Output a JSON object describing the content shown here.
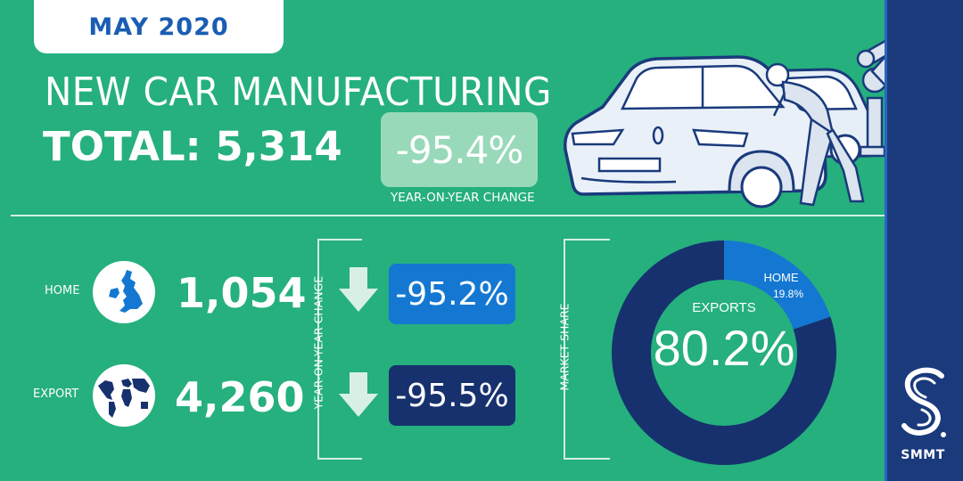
{
  "date": "MAY 2020",
  "headline": "NEW CAR MANUFACTURING",
  "total": "TOTAL: 5,314",
  "total_yoy": "-95.4%",
  "yoy_label": "YEAR-ON-YEAR CHANGE",
  "home": {
    "label": "HOME",
    "value": "1,054",
    "change": "-95.2%"
  },
  "export": {
    "label": "EXPORT",
    "value": "4,260",
    "change": "-95.5%"
  },
  "yoy_axis_label": "YEAR-ON-YEAR CHANGE",
  "market_share_label": "MARKET SHARE",
  "market_share": {
    "exports_label": "EXPORTS",
    "exports_value": "80.2%",
    "home_label": "HOME",
    "home_value": "19.8%"
  },
  "brand": "SMMT",
  "colors": {
    "background": "#25b07d",
    "sidebar": "#1a3a7c",
    "home_blue": "#1478d2",
    "export_navy": "#17316e",
    "light_green": "#98d9b9"
  },
  "chart_data": {
    "type": "pie",
    "categories": [
      "EXPORTS",
      "HOME"
    ],
    "values": [
      80.2,
      19.8
    ]
  },
  "icons": [
    "uk-map-icon",
    "world-map-icon",
    "down-arrow-icon",
    "smmt-logo",
    "car-factory-illustration"
  ]
}
